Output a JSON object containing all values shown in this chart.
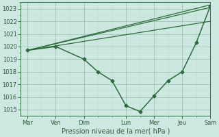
{
  "xlabel": "Pression niveau de la mer( hPa )",
  "background_color": "#cce8e0",
  "grid_major_color": "#99bbb0",
  "grid_minor_color": "#bbddcc",
  "line_color": "#2d6b3c",
  "ylim": [
    1014.5,
    1023.5
  ],
  "ytick_values": [
    1015,
    1016,
    1017,
    1018,
    1019,
    1020,
    1021,
    1022,
    1023
  ],
  "xlim_left": -0.5,
  "xlim_right": 12.5,
  "day_major_positions": [
    0,
    2,
    4,
    7,
    9,
    11,
    13
  ],
  "day_major_labels": [
    "Mar",
    "Ven",
    "Dim",
    "Lun",
    "Mer",
    "Jeu",
    "Sam"
  ],
  "series_main": {
    "x": [
      0,
      2,
      4,
      5,
      6,
      7,
      8,
      9,
      10,
      11,
      12,
      13
    ],
    "y": [
      1019.7,
      1020.0,
      1019.0,
      1018.0,
      1017.3,
      1015.3,
      1014.85,
      1016.1,
      1017.3,
      1018.0,
      1020.3,
      1023.2
    ],
    "marker": "D",
    "markersize": 2.5,
    "linewidth": 1.1
  },
  "series_forecast": [
    {
      "x": [
        0,
        13
      ],
      "y": [
        1019.7,
        1023.3
      ],
      "linewidth": 0.9
    },
    {
      "x": [
        0,
        13
      ],
      "y": [
        1019.7,
        1022.0
      ],
      "linewidth": 0.9
    },
    {
      "x": [
        0,
        13
      ],
      "y": [
        1019.7,
        1023.1
      ],
      "linewidth": 0.9
    }
  ]
}
